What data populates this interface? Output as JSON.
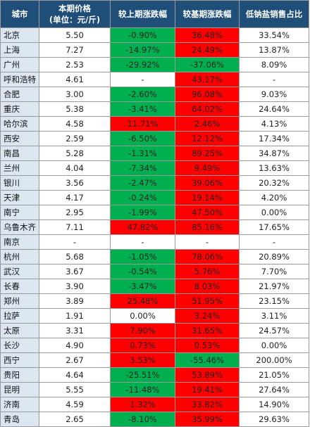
{
  "colors": {
    "header_bg": "#1f4e78",
    "header_text": "#ffffff",
    "city_bg": "#dce6f1",
    "increase": "#ff0000",
    "decrease": "#00b050",
    "neutral": "#ffffff"
  },
  "header": {
    "city": "城市",
    "price_line1": "本期价格",
    "price_line2": "(单位：元/斤)",
    "mom": "较上期涨跌幅",
    "yoy": "较基期涨跌幅",
    "share": "低钠盐销售占比"
  },
  "rows": [
    {
      "city": "北京",
      "price": "5.50",
      "mom": "-0.90%",
      "mom_dir": "neg",
      "yoy": "36.48%",
      "yoy_dir": "pos",
      "share": "33.54%"
    },
    {
      "city": "上海",
      "price": "7.27",
      "mom": "-14.97%",
      "mom_dir": "neg",
      "yoy": "24.49%",
      "yoy_dir": "pos",
      "share": "13.87%"
    },
    {
      "city": "广州",
      "price": "2.53",
      "mom": "-29.92%",
      "mom_dir": "neg",
      "yoy": "-37.06%",
      "yoy_dir": "neg",
      "share": "8.09%"
    },
    {
      "city": "呼和浩特",
      "price": "4.61",
      "mom": "-",
      "mom_dir": "na",
      "yoy": "43.17%",
      "yoy_dir": "pos",
      "share": "-"
    },
    {
      "city": "合肥",
      "price": "3.00",
      "mom": "-2.60%",
      "mom_dir": "neg",
      "yoy": "96.08%",
      "yoy_dir": "pos",
      "share": "9.03%"
    },
    {
      "city": "重庆",
      "price": "5.38",
      "mom": "-3.41%",
      "mom_dir": "neg",
      "yoy": "64.02%",
      "yoy_dir": "pos",
      "share": "24.64%"
    },
    {
      "city": "哈尔滨",
      "price": "4.58",
      "mom": "11.71%",
      "mom_dir": "pos",
      "yoy": "2.46%",
      "yoy_dir": "pos",
      "share": "4.13%"
    },
    {
      "city": "西安",
      "price": "2.59",
      "mom": "-6.50%",
      "mom_dir": "neg",
      "yoy": "12.12%",
      "yoy_dir": "pos",
      "share": "17.34%"
    },
    {
      "city": "南昌",
      "price": "5.28",
      "mom": "-1.31%",
      "mom_dir": "neg",
      "yoy": "89.25%",
      "yoy_dir": "pos",
      "share": "34.87%"
    },
    {
      "city": "兰州",
      "price": "4.04",
      "mom": "-7.34%",
      "mom_dir": "neg",
      "yoy": "9.49%",
      "yoy_dir": "pos",
      "share": "13.63%"
    },
    {
      "city": "银川",
      "price": "3.56",
      "mom": "-2.47%",
      "mom_dir": "neg",
      "yoy": "39.06%",
      "yoy_dir": "pos",
      "share": "20.32%"
    },
    {
      "city": "天津",
      "price": "4.17",
      "mom": "-0.24%",
      "mom_dir": "neg",
      "yoy": "19.14%",
      "yoy_dir": "pos",
      "share": "4.20%"
    },
    {
      "city": "南宁",
      "price": "2.95",
      "mom": "-1.99%",
      "mom_dir": "neg",
      "yoy": "47.50%",
      "yoy_dir": "pos",
      "share": "0.00%"
    },
    {
      "city": "乌鲁木齐",
      "price": "7.11",
      "mom": "47.82%",
      "mom_dir": "pos",
      "yoy": "85.16%",
      "yoy_dir": "pos",
      "share": "17.65%"
    },
    {
      "city": "南京",
      "price": "-",
      "mom": "-",
      "mom_dir": "na",
      "yoy": "-",
      "yoy_dir": "na",
      "share": "-"
    },
    {
      "city": "杭州",
      "price": "5.68",
      "mom": "-1.05%",
      "mom_dir": "neg",
      "yoy": "78.06%",
      "yoy_dir": "pos",
      "share": "20.89%"
    },
    {
      "city": "武汉",
      "price": "3.67",
      "mom": "-0.54%",
      "mom_dir": "neg",
      "yoy": "5.76%",
      "yoy_dir": "pos",
      "share": "7.70%"
    },
    {
      "city": "长春",
      "price": "3.90",
      "mom": "-3.47%",
      "mom_dir": "neg",
      "yoy": "8.03%",
      "yoy_dir": "pos",
      "share": "21.97%"
    },
    {
      "city": "郑州",
      "price": "3.89",
      "mom": "25.48%",
      "mom_dir": "pos",
      "yoy": "51.95%",
      "yoy_dir": "pos",
      "share": "23.15%"
    },
    {
      "city": "拉萨",
      "price": "1.91",
      "mom": "0.00%",
      "mom_dir": "zero",
      "yoy": "3.24%",
      "yoy_dir": "pos",
      "share": "3.11%"
    },
    {
      "city": "太原",
      "price": "3.31",
      "mom": "7.90%",
      "mom_dir": "pos",
      "yoy": "31.65%",
      "yoy_dir": "pos",
      "share": "24.57%"
    },
    {
      "city": "长沙",
      "price": "4.90",
      "mom": "0.73%",
      "mom_dir": "pos",
      "yoy": "0.53%",
      "yoy_dir": "pos",
      "share": "0.00%"
    },
    {
      "city": "西宁",
      "price": "2.67",
      "mom": "3.53%",
      "mom_dir": "pos",
      "yoy": "-55.46%",
      "yoy_dir": "neg",
      "share": "200.00%"
    },
    {
      "city": "贵阳",
      "price": "4.64",
      "mom": "-25.51%",
      "mom_dir": "neg",
      "yoy": "53.89%",
      "yoy_dir": "pos",
      "share": "21.05%"
    },
    {
      "city": "昆明",
      "price": "5.55",
      "mom": "-11.48%",
      "mom_dir": "neg",
      "yoy": "19.41%",
      "yoy_dir": "pos",
      "share": "27.64%"
    },
    {
      "city": "济南",
      "price": "4.59",
      "mom": "1.32%",
      "mom_dir": "pos",
      "yoy": "33.82%",
      "yoy_dir": "pos",
      "share": "14.90%"
    },
    {
      "city": "青岛",
      "price": "2.65",
      "mom": "-8.10%",
      "mom_dir": "neg",
      "yoy": "35.99%",
      "yoy_dir": "pos",
      "share": "29.63%"
    }
  ]
}
